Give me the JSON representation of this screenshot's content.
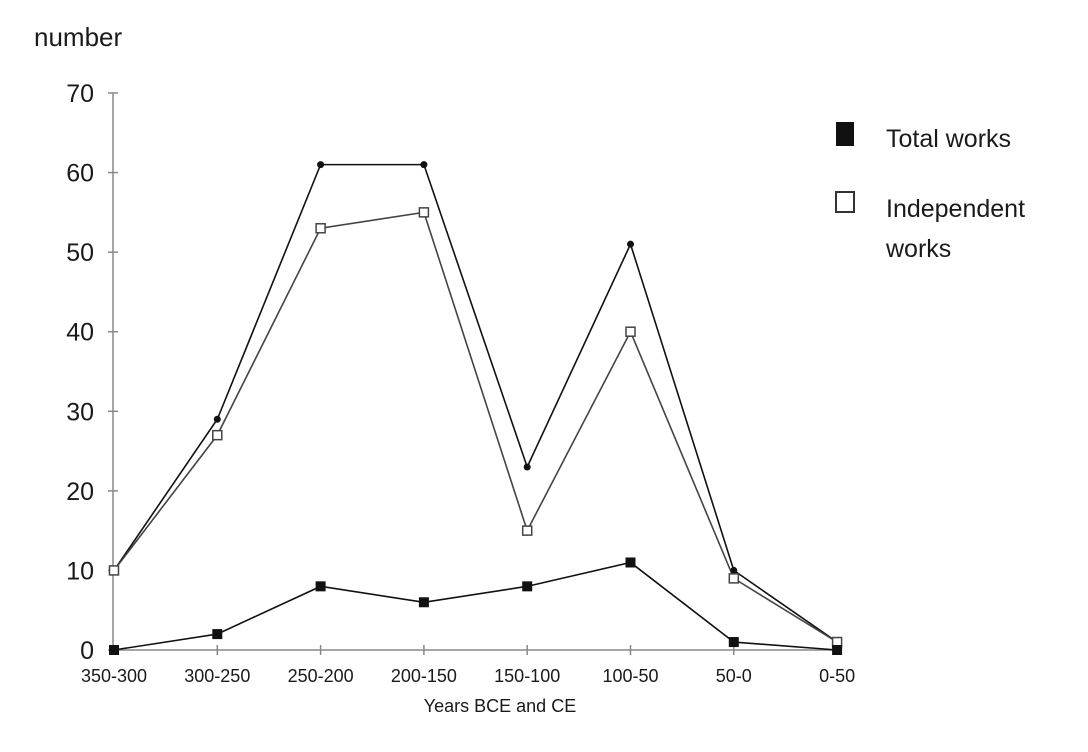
{
  "chart_data": {
    "type": "line",
    "ylabel": "number",
    "xlabel": "Years BCE and CE",
    "categories": [
      "350-300",
      "300-250",
      "250-200",
      "200-150",
      "150-100",
      "100-50",
      "50-0",
      "0-50"
    ],
    "ylim": [
      0,
      70
    ],
    "yticks": [
      "0",
      "10",
      "20",
      "30",
      "40",
      "50",
      "60",
      "70"
    ],
    "grid": false,
    "legend_position": "right",
    "series": [
      {
        "key": "upper",
        "values": [
          10,
          29,
          61,
          61,
          23,
          51,
          10,
          1
        ],
        "marker": "small-dot",
        "color": "#111111"
      },
      {
        "key": "independent",
        "values": [
          10,
          27,
          53,
          55,
          15,
          40,
          9,
          1
        ],
        "marker": "open-square",
        "color": "#444444"
      },
      {
        "key": "lower",
        "values": [
          0,
          2,
          8,
          6,
          8,
          11,
          1,
          0
        ],
        "marker": "filled-square",
        "color": "#111111"
      }
    ],
    "legend": [
      {
        "label_lines": [
          "Total works"
        ],
        "marker": "filled-square"
      },
      {
        "label_lines": [
          "Independent",
          "works"
        ],
        "marker": "open-square"
      }
    ]
  }
}
